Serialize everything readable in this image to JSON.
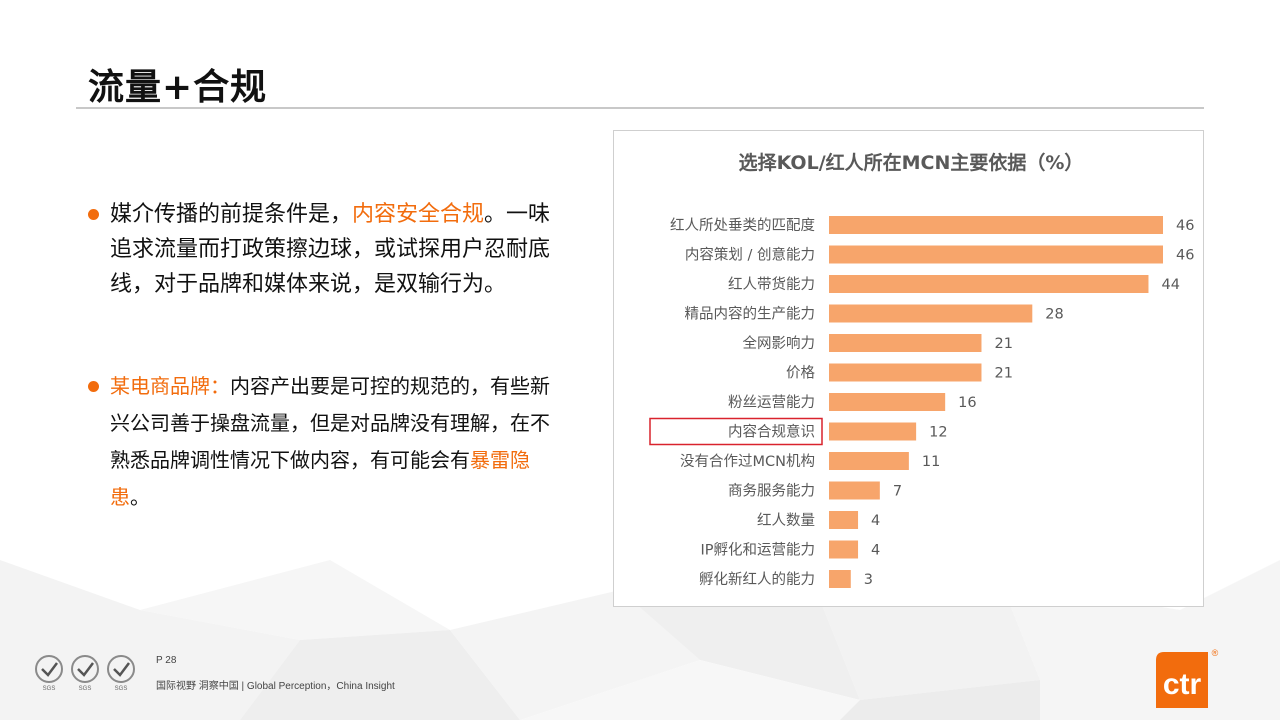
{
  "page": {
    "title": "流量+合规",
    "page_number": "P 28",
    "slogan": "国际视野  洞察中国 |  Global Perception，China Insight",
    "logo_text": "ctr",
    "logo_mark": "®",
    "seal_label": "SGS",
    "accent_color": "#f26c0d",
    "bar_color": "#f7a56b",
    "highlight_box_color": "#d9232d"
  },
  "bullets": [
    {
      "parts": [
        {
          "text": "媒介传播的前提条件是，",
          "highlight": false
        },
        {
          "text": "内容安全合规",
          "highlight": true
        },
        {
          "text": "。一味追求流量而打政策擦边球，或试探用户忍耐底线，对于品牌和媒体来说，是双输行为。",
          "highlight": false
        }
      ]
    },
    {
      "parts": [
        {
          "text": "某电商品牌：",
          "highlight": true
        },
        {
          "text": "内容产出要是可控的规范的，有些新兴公司善于操盘流量，但是对品牌没有理解，在不熟悉品牌调性情况下做内容，有可能会有",
          "highlight": false
        },
        {
          "text": "暴雷隐患",
          "highlight": true
        },
        {
          "text": "。",
          "highlight": false
        }
      ]
    }
  ],
  "chart_data": {
    "type": "bar",
    "orientation": "horizontal",
    "title": "选择KOL/红人所在MCN主要依据（%）",
    "categories": [
      "红人所处垂类的匹配度",
      "内容策划 / 创意能力",
      "红人带货能力",
      "精品内容的生产能力",
      "全网影响力",
      "价格",
      "粉丝运营能力",
      "内容合规意识",
      "没有合作过MCN机构",
      "商务服务能力",
      "红人数量",
      "IP孵化和运营能力",
      "孵化新红人的能力"
    ],
    "values": [
      46,
      46,
      44,
      28,
      21,
      21,
      16,
      12,
      11,
      7,
      4,
      4,
      3
    ],
    "xlim": [
      0,
      46
    ],
    "highlighted_category": "内容合规意识",
    "grid": false,
    "legend": "none"
  }
}
